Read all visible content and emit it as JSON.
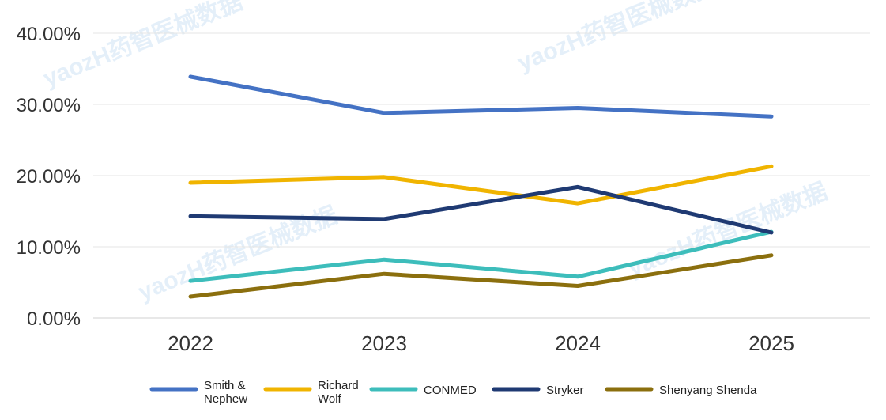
{
  "chart_data": {
    "type": "line",
    "title": "",
    "xlabel": "",
    "ylabel": "",
    "x": [
      "2022",
      "2023",
      "2024",
      "2025"
    ],
    "ylim": [
      0,
      40
    ],
    "yticks": [
      "0.00%",
      "10.00%",
      "20.00%",
      "30.00%",
      "40.00%"
    ],
    "ytick_values": [
      0,
      10,
      20,
      30,
      40
    ],
    "grid": true,
    "legend_position": "bottom",
    "series": [
      {
        "name": "Smith & Nephew",
        "legend_lines": [
          "Smith &",
          "Nephew"
        ],
        "color": "#4472C4",
        "values": [
          33.9,
          28.8,
          29.5,
          28.3
        ]
      },
      {
        "name": "Richard Wolf",
        "legend_lines": [
          "Richard",
          "Wolf"
        ],
        "color": "#F0B400",
        "values": [
          19.0,
          19.8,
          16.1,
          21.3
        ]
      },
      {
        "name": "CONMED",
        "legend_lines": [
          "CONMED"
        ],
        "color": "#3DBDBB",
        "values": [
          5.2,
          8.2,
          5.8,
          12.1
        ]
      },
      {
        "name": "Stryker",
        "legend_lines": [
          "Stryker"
        ],
        "color": "#1F3A73",
        "values": [
          14.3,
          13.9,
          18.4,
          12.0
        ]
      },
      {
        "name": "Shenyang Shenda",
        "legend_lines": [
          "Shenyang Shenda"
        ],
        "color": "#8B6F0E",
        "values": [
          3.0,
          6.2,
          4.5,
          8.8
        ]
      }
    ]
  },
  "watermark": "yaozH药智医械数据"
}
